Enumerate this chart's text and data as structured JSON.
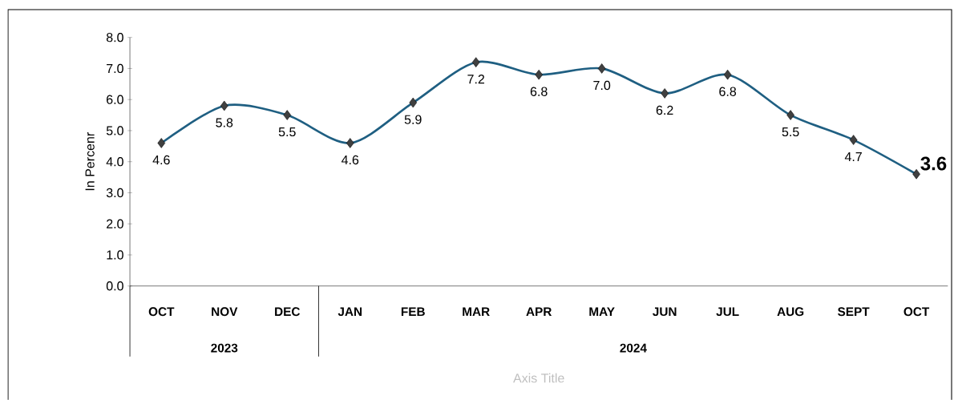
{
  "chart_data": {
    "type": "line",
    "ylabel": "In Percenr",
    "xlabel": "Axis Title",
    "categories": [
      "OCT",
      "NOV",
      "DEC",
      "JAN",
      "FEB",
      "MAR",
      "APR",
      "MAY",
      "JUN",
      "JUL",
      "AUG",
      "SEPT",
      "OCT"
    ],
    "values": [
      4.6,
      5.8,
      5.5,
      4.6,
      5.9,
      7.2,
      6.8,
      7.0,
      6.2,
      6.8,
      5.5,
      4.7,
      3.6
    ],
    "color": "#1f5f82",
    "marker": "diamond",
    "value_labels": [
      "4.6",
      "5.8",
      "5.5",
      "4.6",
      "5.9",
      "7.2",
      "6.8",
      "7.0",
      "6.2",
      "6.8",
      "5.5",
      "4.7",
      "3.6"
    ],
    "ylim": [
      0,
      8
    ],
    "yticks": [
      {
        "value": 0,
        "label": "0.0"
      },
      {
        "value": 1,
        "label": "1.0"
      },
      {
        "value": 2,
        "label": "2.0"
      },
      {
        "value": 3,
        "label": "3.0"
      },
      {
        "value": 4,
        "label": "4.0"
      },
      {
        "value": 5,
        "label": "5.0"
      },
      {
        "value": 6,
        "label": "6.0"
      },
      {
        "value": 7,
        "label": "7.0"
      },
      {
        "value": 8,
        "label": "8.0"
      }
    ],
    "annotations": [
      "2023",
      "2024"
    ],
    "grid": false
  }
}
